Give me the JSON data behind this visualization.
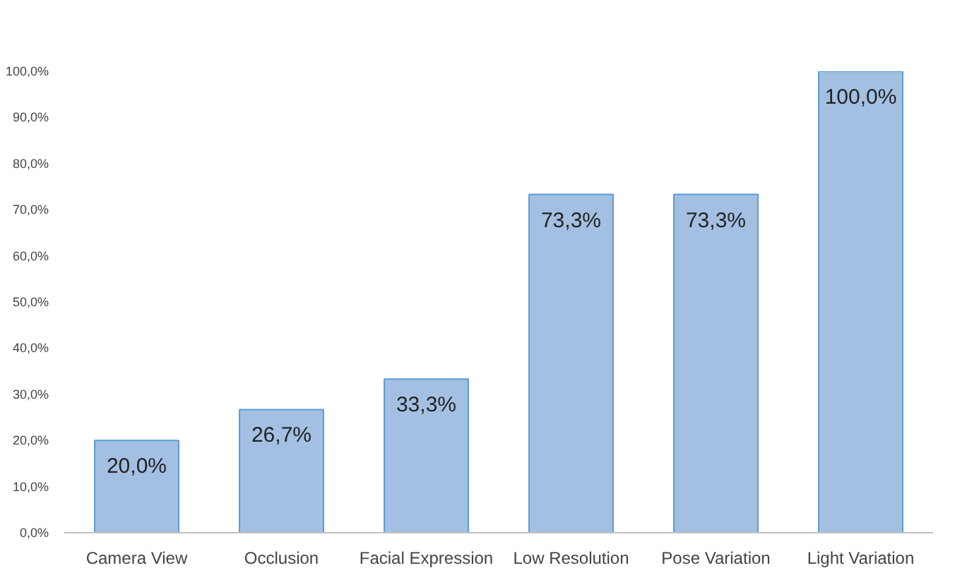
{
  "chart_data": {
    "type": "bar",
    "categories": [
      "Camera View",
      "Occlusion",
      "Facial Expression",
      "Low Resolution",
      "Pose Variation",
      "Light Variation"
    ],
    "values": [
      20.0,
      26.7,
      33.3,
      73.3,
      73.3,
      100.0
    ],
    "value_labels": [
      "20,0%",
      "26,7%",
      "33,3%",
      "73,3%",
      "73,3%",
      "100,0%"
    ],
    "color": "#a3c0e3",
    "ylim": [
      0,
      100
    ],
    "yticks": [
      {
        "value": 0,
        "label": "0,0%"
      },
      {
        "value": 10,
        "label": "10,0%"
      },
      {
        "value": 20,
        "label": "20,0%"
      },
      {
        "value": 30,
        "label": "30,0%"
      },
      {
        "value": 40,
        "label": "40,0%"
      },
      {
        "value": 50,
        "label": "50,0%"
      },
      {
        "value": 60,
        "label": "60,0%"
      },
      {
        "value": 70,
        "label": "70,0%"
      },
      {
        "value": 80,
        "label": "80,0%"
      },
      {
        "value": 90,
        "label": "90,0%"
      },
      {
        "value": 100,
        "label": "100,0%"
      }
    ],
    "grid": false
  }
}
